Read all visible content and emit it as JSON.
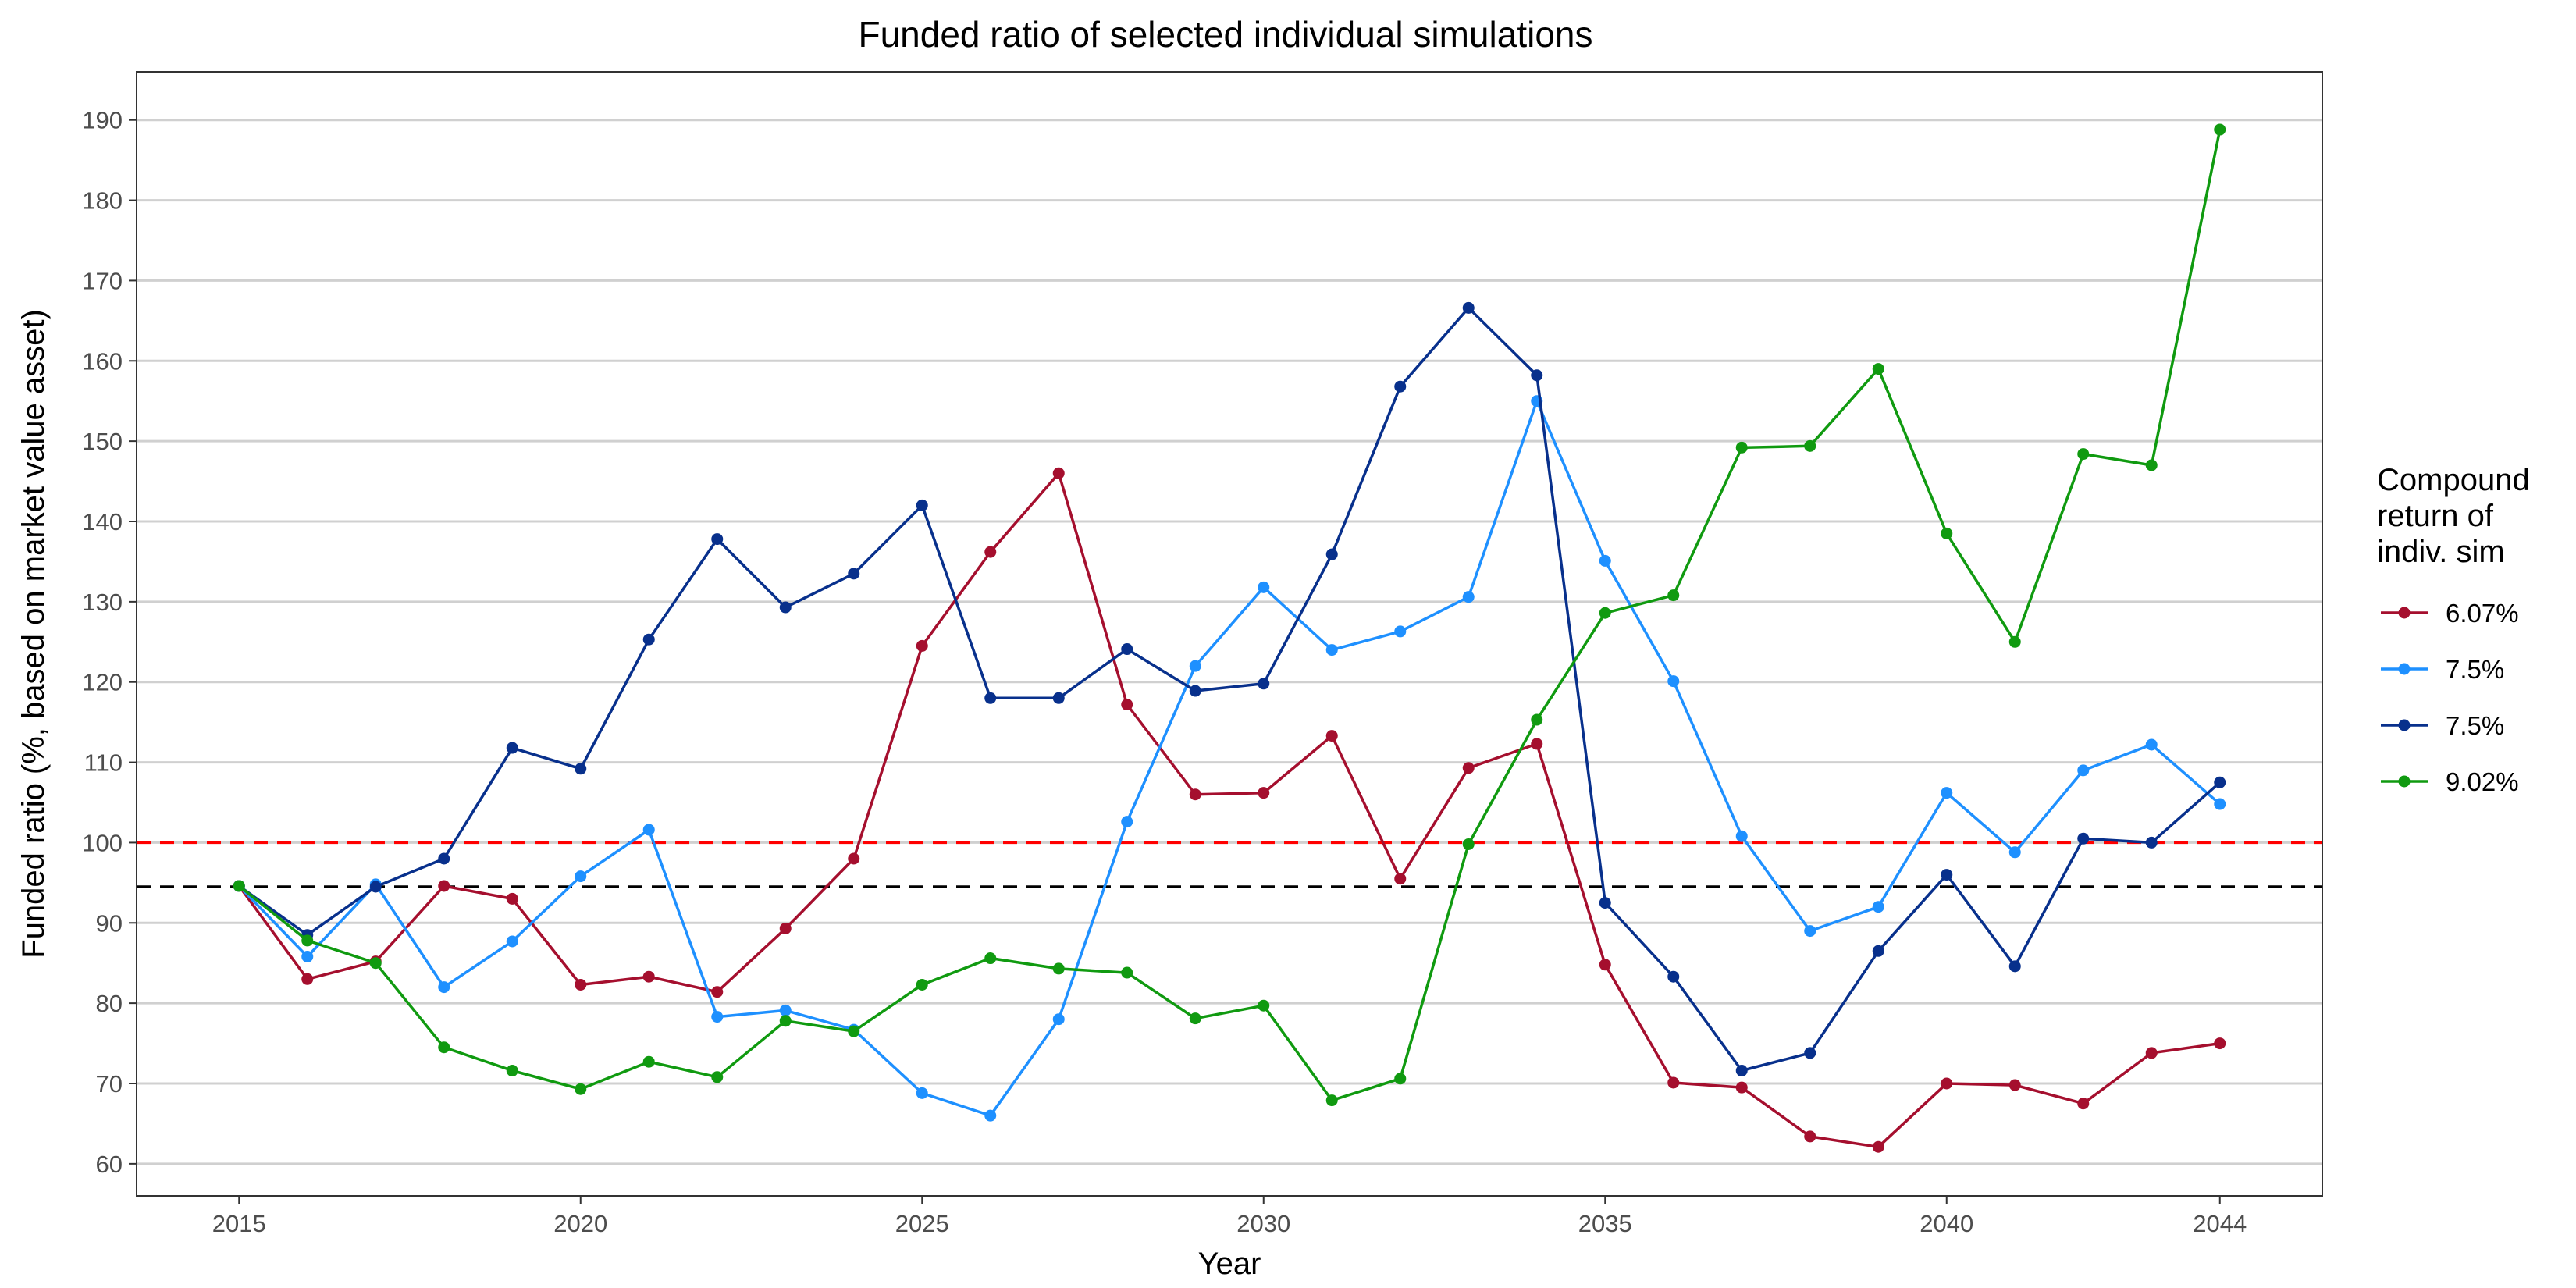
{
  "chart_data": {
    "type": "line",
    "title": "Funded ratio of selected individual simulations",
    "xlabel": "Year",
    "ylabel": "Funded ratio (%, based on market value asset)",
    "xlim": [
      2013.5,
      2045.5
    ],
    "ylim": [
      56,
      196
    ],
    "x_ticks": [
      2015,
      2020,
      2025,
      2030,
      2035,
      2040,
      2044
    ],
    "y_ticks": [
      60,
      70,
      80,
      90,
      100,
      110,
      120,
      130,
      140,
      150,
      160,
      170,
      180,
      190
    ],
    "grid": "horizontal",
    "legend": {
      "title_lines": [
        "Compound",
        "return of",
        "indiv. sim"
      ],
      "position": "right"
    },
    "reference_lines": [
      {
        "y": 100,
        "color": "#ff0000",
        "style": "dashed"
      },
      {
        "y": 94.5,
        "color": "#000000",
        "style": "dashed"
      }
    ],
    "x": [
      2015,
      2016,
      2017,
      2018,
      2019,
      2020,
      2021,
      2022,
      2023,
      2024,
      2025,
      2026,
      2027,
      2028,
      2029,
      2030,
      2031,
      2032,
      2033,
      2034,
      2035,
      2036,
      2037,
      2038,
      2039,
      2040,
      2041,
      2042,
      2043,
      2044
    ],
    "series": [
      {
        "name": "6.07%",
        "color": "#a50f2e",
        "values": [
          94.6,
          83,
          85.2,
          94.6,
          93,
          82.3,
          83.3,
          81.4,
          89.3,
          98,
          124.5,
          136.2,
          146,
          117.2,
          106,
          106.2,
          113.3,
          95.5,
          109.3,
          112.3,
          84.8,
          70.1,
          69.5,
          63.4,
          62.1,
          70,
          69.8,
          67.5,
          73.8,
          75
        ]
      },
      {
        "name": "7.5%",
        "color": "#1e90ff",
        "values": [
          94.6,
          85.8,
          94.8,
          82,
          87.7,
          95.8,
          101.6,
          78.3,
          79.1,
          76.7,
          68.8,
          66,
          78,
          102.6,
          122,
          131.8,
          124,
          126.3,
          130.6,
          155,
          135.1,
          120.1,
          100.8,
          89,
          92,
          106.2,
          98.8,
          109,
          112.2,
          104.8
        ]
      },
      {
        "name": "7.5%",
        "color": "#08308c",
        "values": [
          94.6,
          88.5,
          94.5,
          98,
          111.8,
          109.2,
          125.3,
          137.8,
          129.3,
          133.5,
          142,
          118,
          118,
          124.1,
          118.9,
          119.8,
          135.9,
          156.8,
          166.6,
          158.2,
          92.5,
          83.3,
          71.6,
          73.8,
          86.5,
          96,
          84.6,
          100.5,
          100,
          107.5
        ]
      },
      {
        "name": "9.02%",
        "color": "#109a10",
        "values": [
          94.6,
          87.8,
          85,
          74.5,
          71.6,
          69.3,
          72.7,
          70.8,
          77.8,
          76.5,
          82.3,
          85.6,
          84.3,
          83.8,
          78.1,
          79.7,
          67.9,
          70.6,
          99.8,
          115.3,
          128.6,
          130.8,
          149.2,
          149.4,
          159,
          138.5,
          125,
          148.4,
          147,
          188.8
        ]
      }
    ]
  }
}
